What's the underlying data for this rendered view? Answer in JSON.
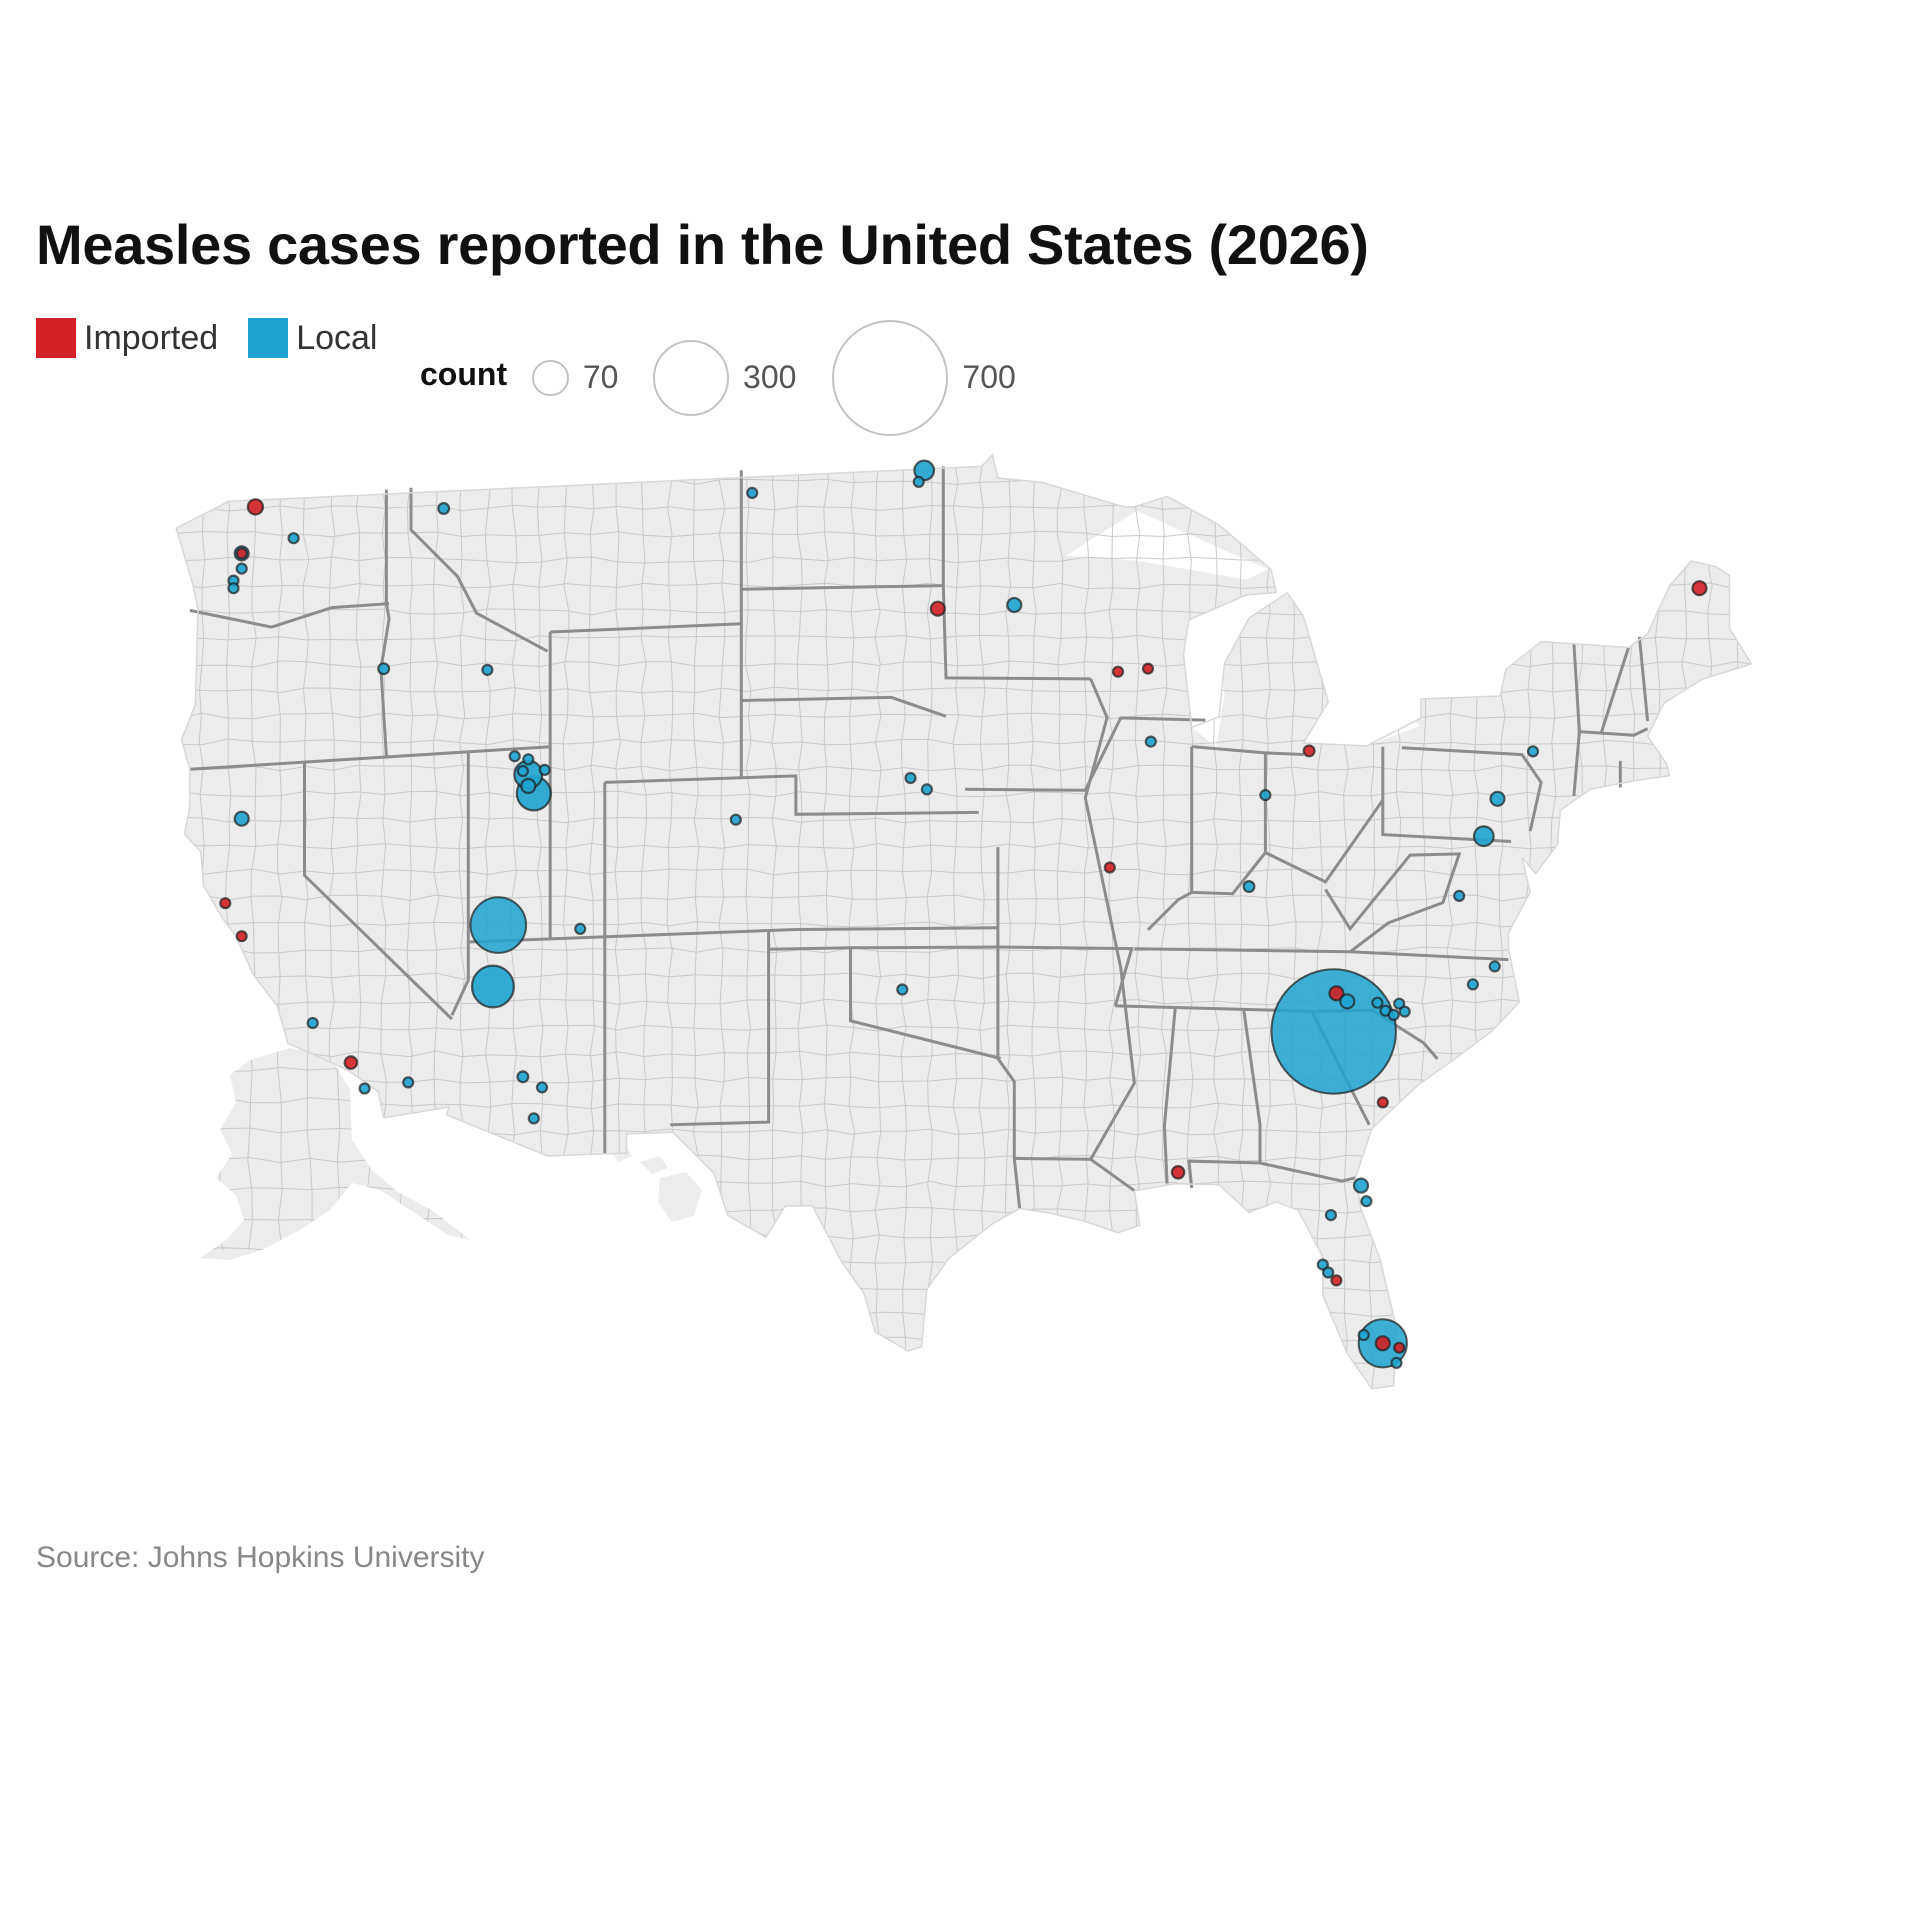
{
  "title": "Measles cases reported in the United States (2026)",
  "legend": {
    "categories": [
      {
        "label": "Imported",
        "color": "#d32026"
      },
      {
        "label": "Local",
        "color": "#1ea3cf"
      }
    ],
    "size_title": "count",
    "size_values": [
      {
        "label": "70",
        "value": 70
      },
      {
        "label": "300",
        "value": 300
      },
      {
        "label": "700",
        "value": 700
      }
    ]
  },
  "source": "Source: Johns Hopkins University",
  "map_data": {
    "type": "bubble-map",
    "region": "United States counties",
    "color_key": "type",
    "size_key": "count",
    "colors": {
      "Imported": "#d32026",
      "Local": "#1ea3cf",
      "land": "#ececec",
      "county_border": "#c9c9c9",
      "state_border": "#8c8c8c"
    },
    "points": [
      {
        "lon": -121.8,
        "lat": 48.8,
        "count": 12,
        "type": "Imported"
      },
      {
        "lon": -114.9,
        "lat": 48.4,
        "count": 6,
        "type": "Local"
      },
      {
        "lon": -120.4,
        "lat": 47.9,
        "count": 2,
        "type": "Local"
      },
      {
        "lon": -122.3,
        "lat": 47.6,
        "count": 10,
        "type": "Local"
      },
      {
        "lon": -122.3,
        "lat": 47.6,
        "count": 3,
        "type": "Imported"
      },
      {
        "lon": -122.3,
        "lat": 47.2,
        "count": 3,
        "type": "Local"
      },
      {
        "lon": -122.6,
        "lat": 46.9,
        "count": 3,
        "type": "Local"
      },
      {
        "lon": -122.6,
        "lat": 46.7,
        "count": 3,
        "type": "Local"
      },
      {
        "lon": -117.1,
        "lat": 44.3,
        "count": 6,
        "type": "Local"
      },
      {
        "lon": -122.3,
        "lat": 40.6,
        "count": 10,
        "type": "Local"
      },
      {
        "lon": -122.9,
        "lat": 38.4,
        "count": 2,
        "type": "Imported"
      },
      {
        "lon": -122.3,
        "lat": 37.5,
        "count": 3,
        "type": "Imported"
      },
      {
        "lon": -119.7,
        "lat": 35.1,
        "count": 2,
        "type": "Local"
      },
      {
        "lon": -118.3,
        "lat": 34.0,
        "count": 8,
        "type": "Imported"
      },
      {
        "lon": -117.8,
        "lat": 33.3,
        "count": 2,
        "type": "Local"
      },
      {
        "lon": -116.2,
        "lat": 33.4,
        "count": 4,
        "type": "Local"
      },
      {
        "lon": -113.3,
        "lat": 44.1,
        "count": 2,
        "type": "Local"
      },
      {
        "lon": -112.3,
        "lat": 41.8,
        "count": 2,
        "type": "Local"
      },
      {
        "lon": -111.8,
        "lat": 41.7,
        "count": 3,
        "type": "Local"
      },
      {
        "lon": -112.0,
        "lat": 41.4,
        "count": 3,
        "type": "Local"
      },
      {
        "lon": -111.8,
        "lat": 41.3,
        "count": 40,
        "type": "Local"
      },
      {
        "lon": -111.8,
        "lat": 41.0,
        "count": 10,
        "type": "Local"
      },
      {
        "lon": -111.6,
        "lat": 40.8,
        "count": 60,
        "type": "Local"
      },
      {
        "lon": -111.2,
        "lat": 41.4,
        "count": 2,
        "type": "Local"
      },
      {
        "lon": -112.9,
        "lat": 37.4,
        "count": 160,
        "type": "Local"
      },
      {
        "lon": -109.9,
        "lat": 37.2,
        "count": 4,
        "type": "Local"
      },
      {
        "lon": -113.1,
        "lat": 35.8,
        "count": 90,
        "type": "Local"
      },
      {
        "lon": -112.0,
        "lat": 33.4,
        "count": 6,
        "type": "Local"
      },
      {
        "lon": -111.3,
        "lat": 33.1,
        "count": 4,
        "type": "Local"
      },
      {
        "lon": -111.6,
        "lat": 32.3,
        "count": 3,
        "type": "Local"
      },
      {
        "lon": -103.6,
        "lat": 48.4,
        "count": 2,
        "type": "Local"
      },
      {
        "lon": -97.3,
        "lat": 48.9,
        "count": 20,
        "type": "Local"
      },
      {
        "lon": -97.5,
        "lat": 48.6,
        "count": 2,
        "type": "Local"
      },
      {
        "lon": -96.8,
        "lat": 45.3,
        "count": 10,
        "type": "Imported"
      },
      {
        "lon": -94.0,
        "lat": 45.4,
        "count": 10,
        "type": "Local"
      },
      {
        "lon": -90.2,
        "lat": 43.7,
        "count": 2,
        "type": "Imported"
      },
      {
        "lon": -89.1,
        "lat": 43.8,
        "count": 2,
        "type": "Imported"
      },
      {
        "lon": -89.0,
        "lat": 41.9,
        "count": 2,
        "type": "Local"
      },
      {
        "lon": -97.8,
        "lat": 40.9,
        "count": 3,
        "type": "Local"
      },
      {
        "lon": -97.2,
        "lat": 40.6,
        "count": 2,
        "type": "Local"
      },
      {
        "lon": -104.2,
        "lat": 39.9,
        "count": 2,
        "type": "Local"
      },
      {
        "lon": -90.5,
        "lat": 38.6,
        "count": 2,
        "type": "Imported"
      },
      {
        "lon": -98.1,
        "lat": 35.4,
        "count": 2,
        "type": "Local"
      },
      {
        "lon": -83.2,
        "lat": 41.8,
        "count": 6,
        "type": "Imported"
      },
      {
        "lon": -84.8,
        "lat": 40.6,
        "count": 3,
        "type": "Local"
      },
      {
        "lon": -85.4,
        "lat": 38.2,
        "count": 6,
        "type": "Local"
      },
      {
        "lon": -76.3,
        "lat": 40.8,
        "count": 10,
        "type": "Local"
      },
      {
        "lon": -75.0,
        "lat": 42.1,
        "count": 2,
        "type": "Local"
      },
      {
        "lon": -76.8,
        "lat": 39.8,
        "count": 20,
        "type": "Local"
      },
      {
        "lon": -77.7,
        "lat": 38.2,
        "count": 2,
        "type": "Local"
      },
      {
        "lon": -76.4,
        "lat": 36.4,
        "count": 2,
        "type": "Local"
      },
      {
        "lon": -77.2,
        "lat": 35.9,
        "count": 2,
        "type": "Local"
      },
      {
        "lon": -68.9,
        "lat": 46.7,
        "count": 10,
        "type": "Imported"
      },
      {
        "lon": -82.3,
        "lat": 34.5,
        "count": 800,
        "type": "Local"
      },
      {
        "lon": -82.2,
        "lat": 35.5,
        "count": 10,
        "type": "Imported"
      },
      {
        "lon": -81.8,
        "lat": 35.3,
        "count": 10,
        "type": "Local"
      },
      {
        "lon": -80.7,
        "lat": 35.3,
        "count": 3,
        "type": "Local"
      },
      {
        "lon": -80.4,
        "lat": 35.1,
        "count": 3,
        "type": "Local"
      },
      {
        "lon": -80.1,
        "lat": 35.0,
        "count": 3,
        "type": "Local"
      },
      {
        "lon": -79.9,
        "lat": 35.3,
        "count": 3,
        "type": "Local"
      },
      {
        "lon": -79.7,
        "lat": 35.1,
        "count": 3,
        "type": "Local"
      },
      {
        "lon": -80.5,
        "lat": 32.7,
        "count": 2,
        "type": "Imported"
      },
      {
        "lon": -88.0,
        "lat": 30.7,
        "count": 8,
        "type": "Imported"
      },
      {
        "lon": -81.3,
        "lat": 30.5,
        "count": 10,
        "type": "Local"
      },
      {
        "lon": -81.1,
        "lat": 30.1,
        "count": 3,
        "type": "Local"
      },
      {
        "lon": -82.4,
        "lat": 29.7,
        "count": 3,
        "type": "Local"
      },
      {
        "lon": -82.7,
        "lat": 28.4,
        "count": 3,
        "type": "Local"
      },
      {
        "lon": -82.5,
        "lat": 28.2,
        "count": 3,
        "type": "Local"
      },
      {
        "lon": -82.2,
        "lat": 28.0,
        "count": 2,
        "type": "Imported"
      },
      {
        "lon": -81.2,
        "lat": 26.6,
        "count": 3,
        "type": "Local"
      },
      {
        "lon": -80.5,
        "lat": 26.4,
        "count": 120,
        "type": "Local"
      },
      {
        "lon": -80.5,
        "lat": 26.4,
        "count": 10,
        "type": "Imported"
      },
      {
        "lon": -79.9,
        "lat": 26.3,
        "count": 2,
        "type": "Imported"
      },
      {
        "lon": -80.0,
        "lat": 25.9,
        "count": 2,
        "type": "Local"
      }
    ]
  }
}
